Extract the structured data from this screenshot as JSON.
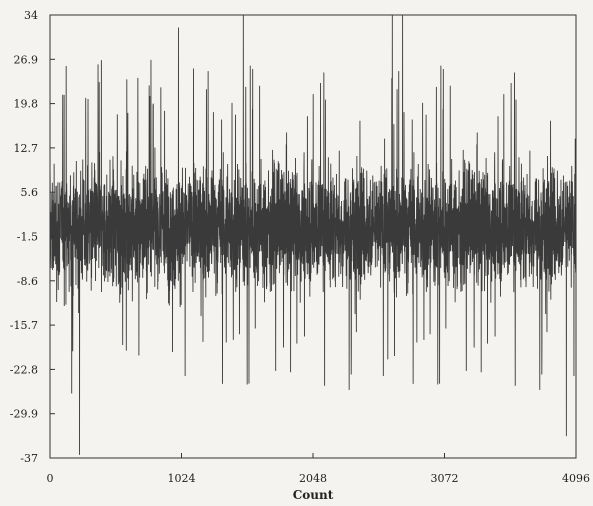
{
  "chart_data": {
    "type": "line",
    "title": "",
    "xlabel": "Count",
    "ylabel": "",
    "xlim": [
      0,
      4096
    ],
    "ylim": [
      -37,
      34
    ],
    "x_ticks": [
      0,
      1024,
      2048,
      3072,
      4096
    ],
    "x_tick_labels": [
      "0",
      "1024",
      "2048",
      "3072",
      "4096"
    ],
    "y_ticks": [
      34,
      26.9,
      19.8,
      12.7,
      5.6,
      -1.5,
      -8.6,
      -15.7,
      -22.8,
      -29.9,
      -37
    ],
    "y_tick_labels": [
      "34",
      "26.9",
      "19.8",
      "12.7",
      "5.6",
      "-1.5",
      "-8.6",
      "-15.7",
      "-22.8",
      "-29.9",
      "-37"
    ],
    "grid": false,
    "series": [
      {
        "color": "#3a3a3a",
        "n_points": 4096,
        "mean": 0,
        "typical_min": -22.8,
        "typical_max": 17,
        "spikes": [
          {
            "x": 230,
            "y": -36.5
          },
          {
            "x": 1000,
            "y": 32
          },
          {
            "x": 1505,
            "y": 34
          },
          {
            "x": 2665,
            "y": 34
          },
          {
            "x": 2745,
            "y": 34
          },
          {
            "x": 4020,
            "y": -33.5
          }
        ]
      }
    ]
  }
}
